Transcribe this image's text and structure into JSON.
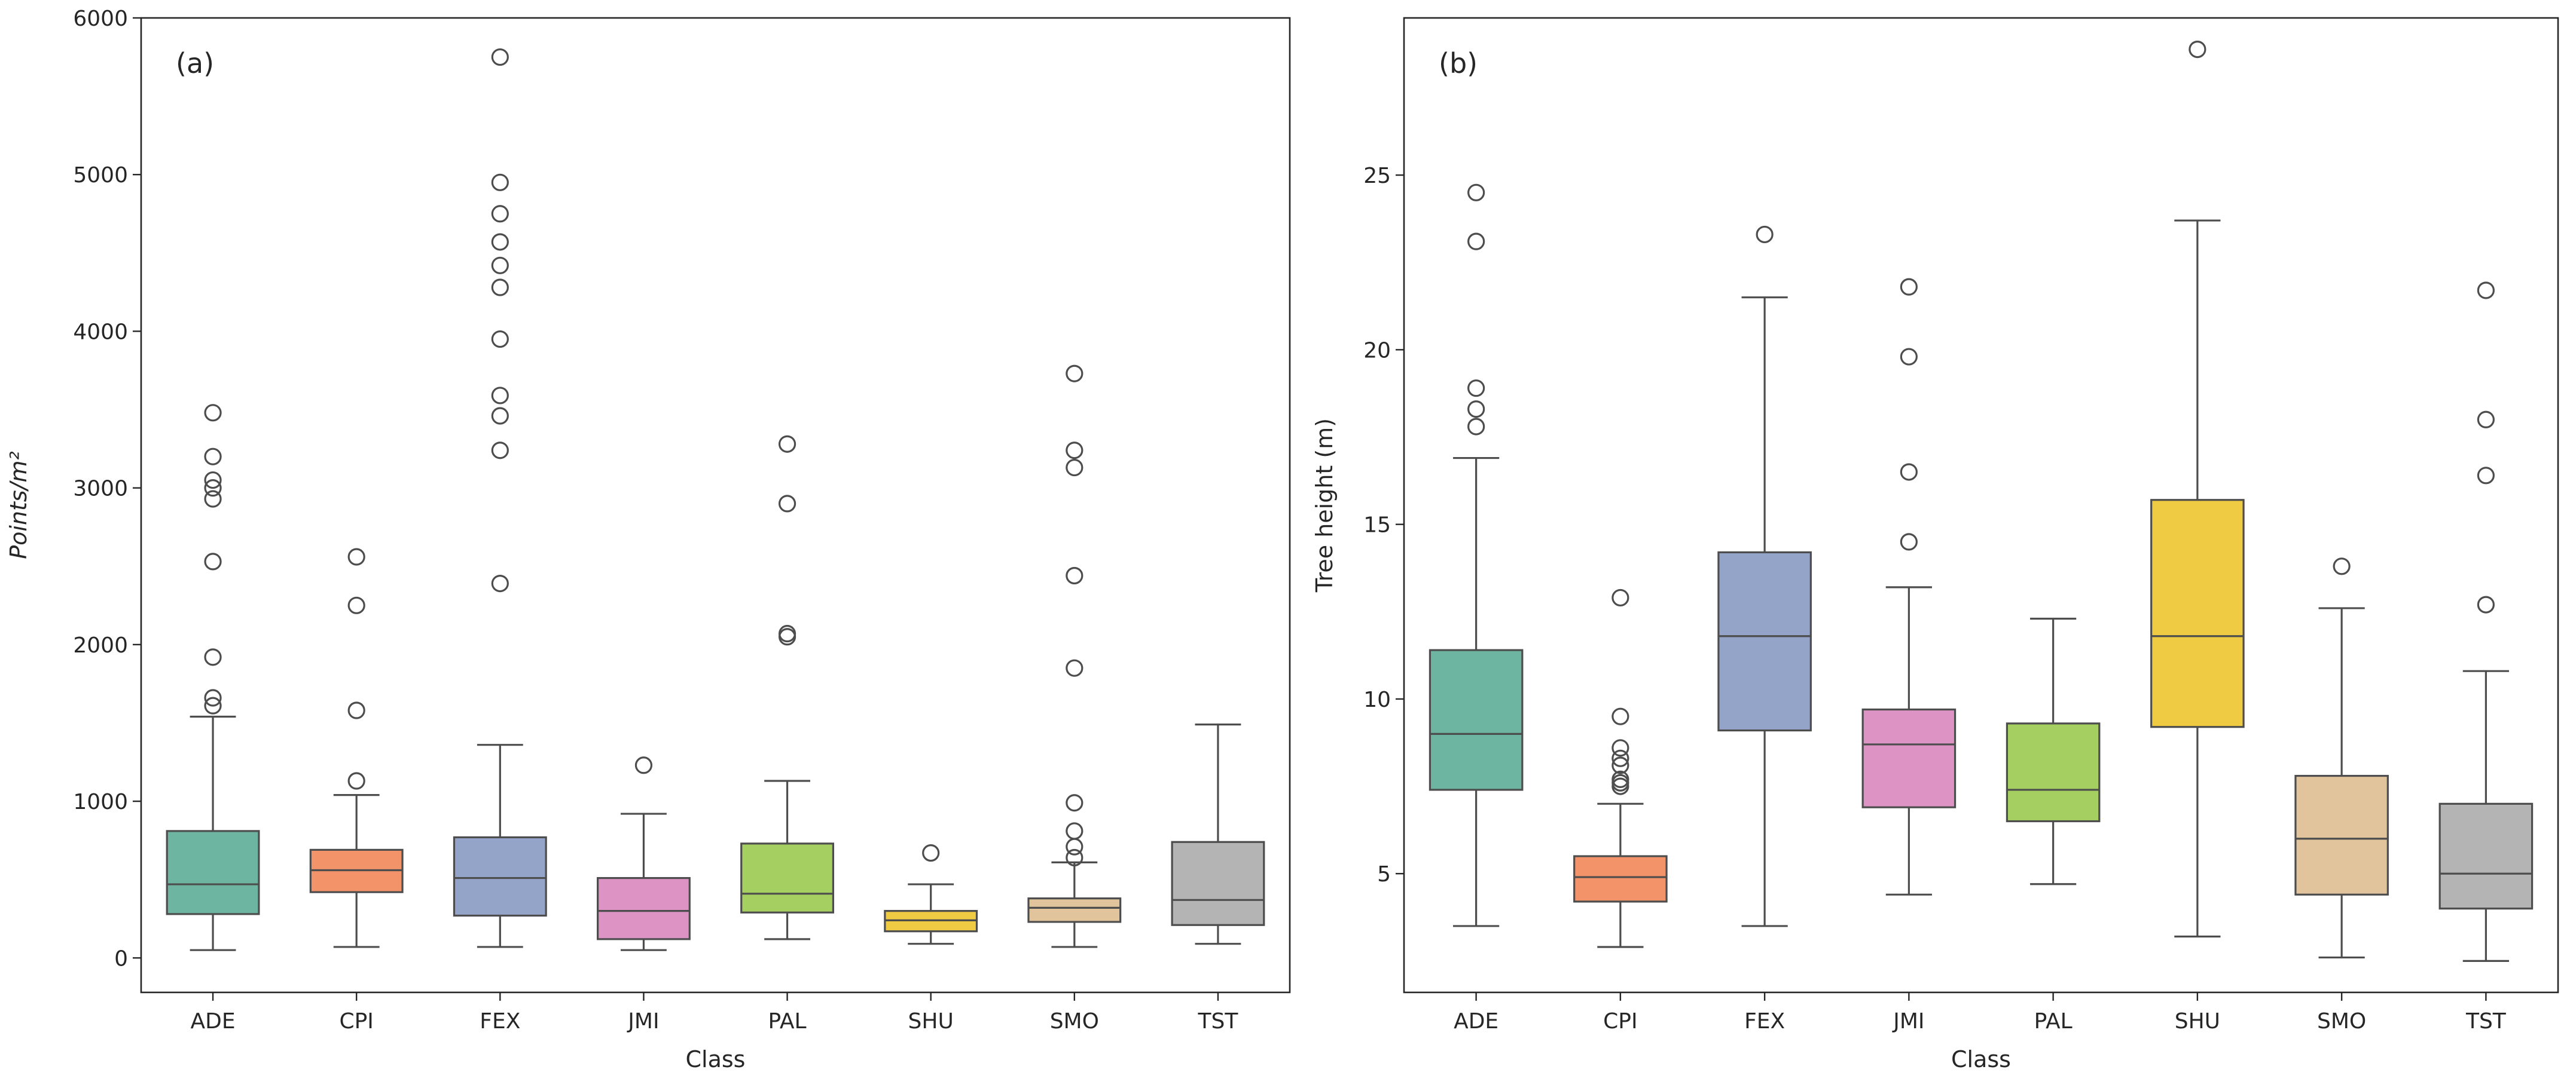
{
  "chart_data": [
    {
      "type": "boxplot",
      "panel_label": "(a)",
      "xlabel": "Class",
      "ylabel": "Points/m²",
      "ylabel_style": "italic",
      "ylim": [
        -220,
        6000
      ],
      "yticks": [
        0,
        1000,
        2000,
        3000,
        4000,
        5000,
        6000
      ],
      "categories": [
        "ADE",
        "CPI",
        "FEX",
        "JMI",
        "PAL",
        "SHU",
        "SMO",
        "TST"
      ],
      "boxes": [
        {
          "category": "ADE",
          "whisker_low": 50,
          "q1": 280,
          "median": 470,
          "q3": 810,
          "whisker_high": 1540,
          "outliers": [
            1610,
            1660,
            1920,
            2530,
            2930,
            3000,
            3050,
            3200,
            3480
          ]
        },
        {
          "category": "CPI",
          "whisker_low": 70,
          "q1": 420,
          "median": 560,
          "q3": 690,
          "whisker_high": 1040,
          "outliers": [
            1130,
            1580,
            2250,
            2560
          ]
        },
        {
          "category": "FEX",
          "whisker_low": 70,
          "q1": 270,
          "median": 510,
          "q3": 770,
          "whisker_high": 1360,
          "outliers": [
            2390,
            3240,
            3460,
            3590,
            3950,
            4280,
            4420,
            4570,
            4750,
            4950,
            5750
          ]
        },
        {
          "category": "JMI",
          "whisker_low": 50,
          "q1": 120,
          "median": 300,
          "q3": 510,
          "whisker_high": 920,
          "outliers": [
            1230
          ]
        },
        {
          "category": "PAL",
          "whisker_low": 120,
          "q1": 290,
          "median": 410,
          "q3": 730,
          "whisker_high": 1130,
          "outliers": [
            2050,
            2070,
            2900,
            3280
          ]
        },
        {
          "category": "SHU",
          "whisker_low": 90,
          "q1": 170,
          "median": 240,
          "q3": 300,
          "whisker_high": 470,
          "outliers": [
            670
          ]
        },
        {
          "category": "SMO",
          "whisker_low": 70,
          "q1": 230,
          "median": 320,
          "q3": 380,
          "whisker_high": 610,
          "outliers": [
            640,
            710,
            810,
            990,
            1850,
            2440,
            3130,
            3240,
            3730
          ]
        },
        {
          "category": "TST",
          "whisker_low": 90,
          "q1": 210,
          "median": 370,
          "q3": 740,
          "whisker_high": 1490,
          "outliers": []
        }
      ]
    },
    {
      "type": "boxplot",
      "panel_label": "(b)",
      "xlabel": "Class",
      "ylabel": "Tree height (m)",
      "ylabel_style": "normal",
      "ylim": [
        1.6,
        29.5
      ],
      "yticks": [
        5,
        10,
        15,
        20,
        25
      ],
      "categories": [
        "ADE",
        "CPI",
        "FEX",
        "JMI",
        "PAL",
        "SHU",
        "SMO",
        "TST"
      ],
      "boxes": [
        {
          "category": "ADE",
          "whisker_low": 3.5,
          "q1": 7.4,
          "median": 9.0,
          "q3": 11.4,
          "whisker_high": 16.9,
          "outliers": [
            17.8,
            18.3,
            18.9,
            23.1,
            24.5
          ]
        },
        {
          "category": "CPI",
          "whisker_low": 2.9,
          "q1": 4.2,
          "median": 4.9,
          "q3": 5.5,
          "whisker_high": 7.0,
          "outliers": [
            7.5,
            7.6,
            7.7,
            8.1,
            8.3,
            8.6,
            9.5,
            12.9
          ]
        },
        {
          "category": "FEX",
          "whisker_low": 3.5,
          "q1": 9.1,
          "median": 11.8,
          "q3": 14.2,
          "whisker_high": 21.5,
          "outliers": [
            23.3
          ]
        },
        {
          "category": "JMI",
          "whisker_low": 4.4,
          "q1": 6.9,
          "median": 8.7,
          "q3": 9.7,
          "whisker_high": 13.2,
          "outliers": [
            14.5,
            16.5,
            19.8,
            21.8
          ]
        },
        {
          "category": "PAL",
          "whisker_low": 4.7,
          "q1": 6.5,
          "median": 7.4,
          "q3": 9.3,
          "whisker_high": 12.3,
          "outliers": []
        },
        {
          "category": "SHU",
          "whisker_low": 3.2,
          "q1": 9.2,
          "median": 11.8,
          "q3": 15.7,
          "whisker_high": 23.7,
          "outliers": [
            28.6
          ]
        },
        {
          "category": "SMO",
          "whisker_low": 2.6,
          "q1": 4.4,
          "median": 6.0,
          "q3": 7.8,
          "whisker_high": 12.6,
          "outliers": [
            13.8
          ]
        },
        {
          "category": "TST",
          "whisker_low": 2.5,
          "q1": 4.0,
          "median": 5.0,
          "q3": 7.0,
          "whisker_high": 10.8,
          "outliers": [
            12.7,
            16.4,
            18.0,
            21.7
          ]
        }
      ]
    }
  ],
  "colors": {
    "ADE": "#6DB5A0",
    "CPI": "#F2936A",
    "FEX": "#94A3C8",
    "JMI": "#DD93C4",
    "PAL": "#A6CF62",
    "SHU": "#EFCB44",
    "SMO": "#E2C49C",
    "TST": "#B4B4B4",
    "line": "#4d4d4d",
    "frame": "#262626"
  }
}
